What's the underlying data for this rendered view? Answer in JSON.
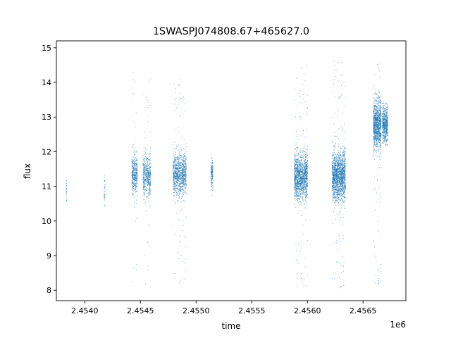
{
  "chart_data": {
    "type": "scatter",
    "title": "1SWASPJ074808.67+465627.0",
    "xlabel": "time",
    "ylabel": "flux",
    "x_offset_label": "1e6",
    "xlim": [
      2453745,
      2456885
    ],
    "ylim": [
      7.7,
      15.2
    ],
    "x_ticks": [
      {
        "value": 2454000,
        "label": "2.4540"
      },
      {
        "value": 2454500,
        "label": "2.4545"
      },
      {
        "value": 2455000,
        "label": "2.4550"
      },
      {
        "value": 2455500,
        "label": "2.4555"
      },
      {
        "value": 2456000,
        "label": "2.4560"
      },
      {
        "value": 2456500,
        "label": "2.4565"
      }
    ],
    "y_ticks": [
      {
        "value": 8,
        "label": "8"
      },
      {
        "value": 9,
        "label": "9"
      },
      {
        "value": 10,
        "label": "10"
      },
      {
        "value": 11,
        "label": "11"
      },
      {
        "value": 12,
        "label": "12"
      },
      {
        "value": 13,
        "label": "13"
      },
      {
        "value": 14,
        "label": "14"
      },
      {
        "value": 15,
        "label": "15"
      }
    ],
    "grid": false,
    "color": "#1f77b4",
    "point_clusters": [
      {
        "x_start": 2453830,
        "x_end": 2453835,
        "y_center": 10.9,
        "y_spread": 0.2,
        "outlier_min": 10.6,
        "outlier_max": 11.2,
        "count": 25
      },
      {
        "x_start": 2454170,
        "x_end": 2454180,
        "y_center": 10.8,
        "y_spread": 0.25,
        "outlier_min": 10.2,
        "outlier_max": 11.4,
        "count": 35
      },
      {
        "x_start": 2454420,
        "x_end": 2454470,
        "y_center": 11.35,
        "y_spread": 0.28,
        "outlier_min": 8.0,
        "outlier_max": 14.5,
        "count": 450
      },
      {
        "x_start": 2454520,
        "x_end": 2454590,
        "y_center": 11.3,
        "y_spread": 0.3,
        "outlier_min": 8.1,
        "outlier_max": 14.2,
        "count": 550
      },
      {
        "x_start": 2454790,
        "x_end": 2454910,
        "y_center": 11.35,
        "y_spread": 0.3,
        "outlier_min": 8.2,
        "outlier_max": 14.1,
        "count": 1100
      },
      {
        "x_start": 2455130,
        "x_end": 2455150,
        "y_center": 11.35,
        "y_spread": 0.2,
        "outlier_min": 10.6,
        "outlier_max": 11.9,
        "count": 160
      },
      {
        "x_start": 2455880,
        "x_end": 2456000,
        "y_center": 11.3,
        "y_spread": 0.32,
        "outlier_min": 8.0,
        "outlier_max": 14.5,
        "count": 1500
      },
      {
        "x_start": 2456220,
        "x_end": 2456340,
        "y_center": 11.3,
        "y_spread": 0.35,
        "outlier_min": 8.0,
        "outlier_max": 14.8,
        "count": 1800
      },
      {
        "x_start": 2456590,
        "x_end": 2456660,
        "y_center": 12.8,
        "y_spread": 0.35,
        "outlier_min": 8.1,
        "outlier_max": 14.6,
        "count": 1200
      },
      {
        "x_start": 2456670,
        "x_end": 2456720,
        "y_center": 12.8,
        "y_spread": 0.25,
        "outlier_min": 12.2,
        "outlier_max": 13.4,
        "count": 600
      }
    ]
  }
}
